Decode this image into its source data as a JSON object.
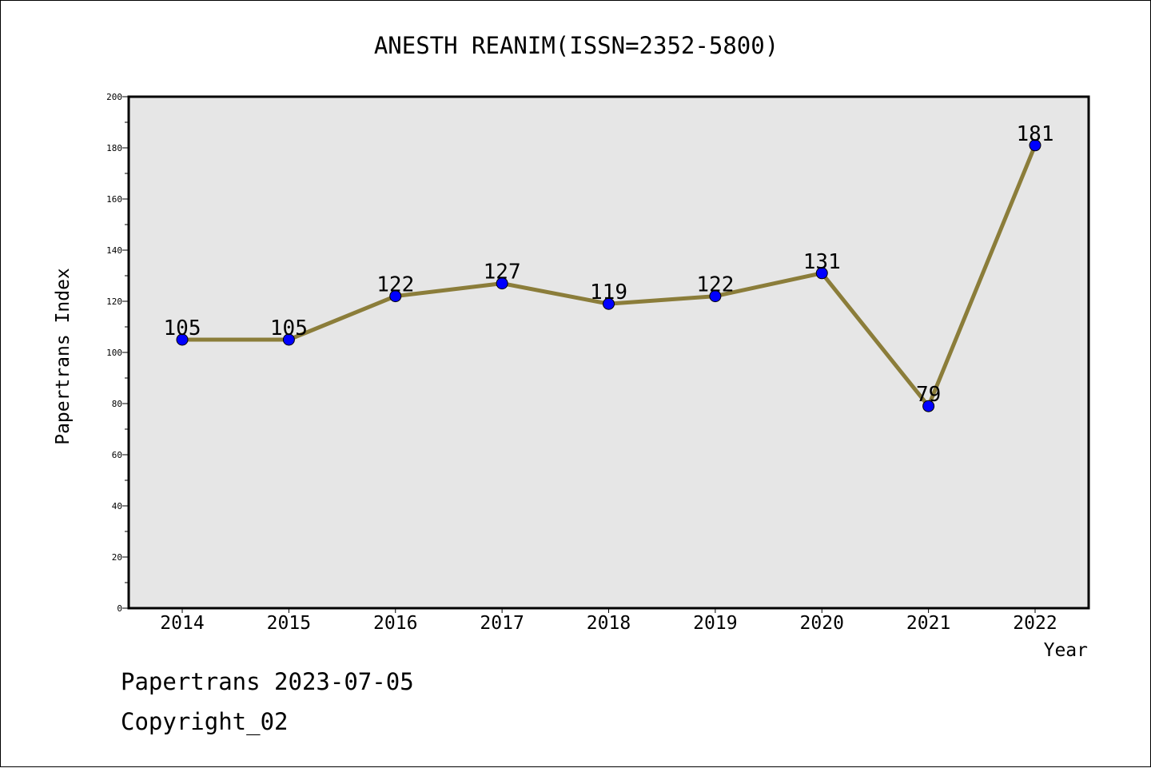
{
  "chart_data": {
    "type": "line",
    "title": "ANESTH REANIM(ISSN=2352-5800)",
    "xlabel": "Year",
    "ylabel": "Papertrans Index",
    "categories": [
      "2014",
      "2015",
      "2016",
      "2017",
      "2018",
      "2019",
      "2020",
      "2021",
      "2022"
    ],
    "series": [
      {
        "values": [
          105,
          105,
          122,
          127,
          119,
          122,
          131,
          79,
          181
        ]
      }
    ],
    "data_labels": [
      "105",
      "105",
      "122",
      "127",
      "119",
      "122",
      "131",
      "79",
      "181"
    ],
    "ylim": [
      0,
      200
    ],
    "yticks": [
      "0",
      "20",
      "40",
      "60",
      "80",
      "100",
      "120",
      "140",
      "160",
      "180",
      "200"
    ],
    "grid": false,
    "legend": "none",
    "colors": {
      "line": "#8b7d3a",
      "marker": "#0000ff",
      "plot_background": "#e6e6e6",
      "axes": "#000000"
    }
  },
  "footer": {
    "line1": "Papertrans 2023-07-05",
    "line2": "Copyright_02"
  }
}
